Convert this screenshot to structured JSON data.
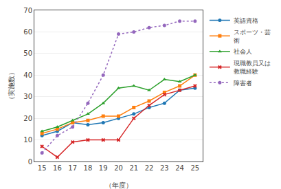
{
  "chart_data": {
    "type": "line",
    "x": [
      15,
      16,
      17,
      18,
      19,
      20,
      21,
      22,
      23,
      24,
      25
    ],
    "xlabel": "（年度）",
    "ylabel": "（実施数）",
    "xlim": [
      14.5,
      25.5
    ],
    "xticks": [
      15,
      16,
      17,
      18,
      19,
      20,
      21,
      22,
      23,
      24,
      25
    ],
    "ylim": [
      0,
      70
    ],
    "yticks": [
      0,
      10,
      20,
      30,
      40,
      50,
      60,
      70
    ],
    "grid": "y",
    "legend": "right",
    "series": [
      {
        "name": "英語資格",
        "values": [
          12,
          14,
          18,
          17,
          18,
          20,
          22,
          25,
          27,
          33,
          34
        ],
        "marker": "circle",
        "line_style": "solid"
      },
      {
        "name": "スポーツ・芸\n術",
        "values": [
          13,
          15,
          18,
          19,
          21,
          21,
          25,
          28,
          32,
          35,
          40
        ],
        "marker": "square",
        "line_style": "solid"
      },
      {
        "name": "社会人",
        "values": [
          14,
          16,
          19,
          22,
          27,
          34,
          35,
          33,
          38,
          37,
          40
        ],
        "marker": "triangle-up",
        "line_style": "solid"
      },
      {
        "name": "現職教員又は\n教職経験",
        "values": [
          7,
          2,
          9,
          10,
          10,
          10,
          20,
          26,
          31,
          33,
          35
        ],
        "marker": "x",
        "line_style": "solid"
      },
      {
        "name": "障害者",
        "values": [
          4,
          12,
          16,
          27,
          40,
          59,
          60,
          62,
          63,
          65,
          65
        ],
        "marker": "circle",
        "line_style": "dotted"
      }
    ]
  }
}
